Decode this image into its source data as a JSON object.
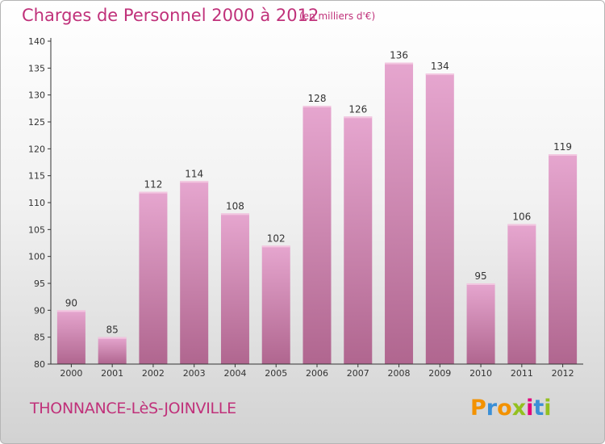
{
  "header": {
    "title": "Charges de Personnel 2000 à 2012",
    "subtitle": "(en milliers d'€)"
  },
  "footer": {
    "place": "THONNANCE-LèS-JOINVILLE"
  },
  "logo": {
    "letters": [
      "P",
      "r",
      "o",
      "x",
      "i",
      "t",
      "i"
    ],
    "colors": [
      "#f39200",
      "#3b8fd6",
      "#f39200",
      "#93c01f",
      "#e2007a",
      "#3b8fd6",
      "#93c01f"
    ]
  },
  "colors": {
    "bar_top": "#e6a6cf",
    "bar_bottom": "#b0668f",
    "bar_highlight": "#f2c6e0",
    "title": "#c0317a",
    "axis": "#333333"
  },
  "chart_data": {
    "type": "bar",
    "title": "Charges de Personnel 2000 à 2012",
    "subtitle": "(en milliers d'€)",
    "categories": [
      "2000",
      "2001",
      "2002",
      "2003",
      "2004",
      "2005",
      "2006",
      "2007",
      "2008",
      "2009",
      "2010",
      "2011",
      "2012"
    ],
    "values": [
      90,
      85,
      112,
      114,
      108,
      102,
      128,
      126,
      136,
      134,
      95,
      106,
      119
    ],
    "ylim": [
      80,
      140
    ],
    "yticks": [
      80,
      85,
      90,
      95,
      100,
      105,
      110,
      115,
      120,
      125,
      130,
      135,
      140
    ],
    "grid": false,
    "legend": "none"
  }
}
